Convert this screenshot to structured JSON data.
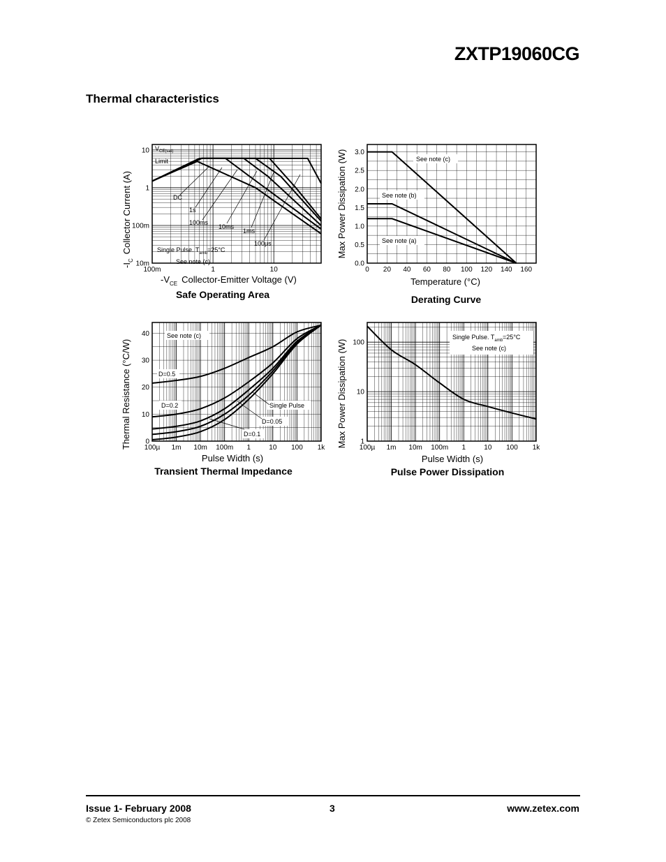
{
  "header": {
    "part_number": "ZXTP19060CG"
  },
  "section_title": "Thermal characteristics",
  "footer": {
    "issue": "Issue 1- February 2008",
    "page": "3",
    "website": "www.zetex.com",
    "copyright": "© Zetex Semiconductors plc 2008"
  },
  "chart_data": [
    {
      "id": "soa",
      "type": "line",
      "title": "Safe Operating Area",
      "xscale": "log",
      "yscale": "log",
      "xlim": [
        0.1,
        60
      ],
      "ylim": [
        0.01,
        14
      ],
      "xticks": [
        {
          "v": 0.1,
          "label": "100m"
        },
        {
          "v": 1,
          "label": "1"
        },
        {
          "v": 10,
          "label": "10"
        }
      ],
      "yticks": [
        {
          "v": 10,
          "label": "10"
        },
        {
          "v": 1,
          "label": "1"
        },
        {
          "v": 0.1,
          "label": "100m"
        },
        {
          "v": 0.01,
          "label": "10m"
        }
      ],
      "xlabel_prefix": "-V",
      "xlabel_sub": "CE",
      "xlabel_rest": "Collector-Emitter Voltage (V)",
      "ylabel_prefix": "-I",
      "ylabel_sub": "C",
      "ylabel_rest": "Collector Current (A)",
      "annotations": {
        "vce_sat_v": "V",
        "vce_sat_sub": "CE(sat)",
        "vce_sat_limit": "Limit",
        "single_pulse": "Single Pulse. T",
        "single_pulse_sub": "amb",
        "single_pulse_rest": "=25°C",
        "see_note": "See note (c)"
      },
      "series": [
        {
          "name": "DC",
          "x": [
            0.1,
            0.55,
            5,
            60
          ],
          "y": [
            1.5,
            5,
            1,
            0.06
          ]
        },
        {
          "name": "1s",
          "x": [
            0.1,
            0.6,
            1.6,
            4,
            60
          ],
          "y": [
            1.5,
            6,
            6,
            2,
            0.08
          ]
        },
        {
          "name": "100ms",
          "x": [
            0.1,
            0.65,
            3.2,
            8,
            60
          ],
          "y": [
            1.5,
            6,
            6,
            2,
            0.1
          ]
        },
        {
          "name": "10ms",
          "x": [
            0.1,
            0.65,
            5,
            13,
            60
          ],
          "y": [
            1.5,
            6,
            6,
            2,
            0.13
          ]
        },
        {
          "name": "1ms",
          "x": [
            0.1,
            0.65,
            8.5,
            23,
            60
          ],
          "y": [
            1.5,
            6,
            6,
            1,
            0.15
          ]
        },
        {
          "name": "100µs",
          "x": [
            0.1,
            0.65,
            36,
            60
          ],
          "y": [
            1.5,
            6,
            6,
            1.3
          ]
        }
      ]
    },
    {
      "id": "derating",
      "type": "line",
      "title": "Derating Curve",
      "xscale": "linear",
      "yscale": "linear",
      "xlim": [
        0,
        170
      ],
      "ylim": [
        0,
        3.2
      ],
      "xticks": [
        {
          "v": 0,
          "label": "0"
        },
        {
          "v": 20,
          "label": "20"
        },
        {
          "v": 40,
          "label": "40"
        },
        {
          "v": 60,
          "label": "60"
        },
        {
          "v": 80,
          "label": "80"
        },
        {
          "v": 100,
          "label": "100"
        },
        {
          "v": 120,
          "label": "120"
        },
        {
          "v": 140,
          "label": "140"
        },
        {
          "v": 160,
          "label": "160"
        }
      ],
      "yticks": [
        {
          "v": 0,
          "label": "0.0"
        },
        {
          "v": 0.5,
          "label": "0.5"
        },
        {
          "v": 1,
          "label": "1.0"
        },
        {
          "v": 1.5,
          "label": "1.5"
        },
        {
          "v": 2,
          "label": "2.0"
        },
        {
          "v": 2.5,
          "label": "2.5"
        },
        {
          "v": 3,
          "label": "3.0"
        }
      ],
      "xlabel": "Temperature (°C)",
      "ylabel": "Max Power Dissipation (W)",
      "series": [
        {
          "name": "See note (c)",
          "x": [
            0,
            25,
            150
          ],
          "y": [
            3.0,
            3.0,
            0
          ]
        },
        {
          "name": "See note (b)",
          "x": [
            0,
            25,
            150
          ],
          "y": [
            1.6,
            1.6,
            0
          ]
        },
        {
          "name": "See note (a)",
          "x": [
            0,
            25,
            150
          ],
          "y": [
            1.2,
            1.2,
            0
          ]
        }
      ]
    },
    {
      "id": "transient",
      "type": "line",
      "title": "Transient Thermal Impedance",
      "xscale": "log",
      "yscale": "linear",
      "xlim": [
        0.0001,
        1000
      ],
      "ylim": [
        0,
        44
      ],
      "xticks": [
        {
          "v": 0.0001,
          "label": "100µ"
        },
        {
          "v": 0.001,
          "label": "1m"
        },
        {
          "v": 0.01,
          "label": "10m"
        },
        {
          "v": 0.1,
          "label": "100m"
        },
        {
          "v": 1,
          "label": "1"
        },
        {
          "v": 10,
          "label": "10"
        },
        {
          "v": 100,
          "label": "100"
        },
        {
          "v": 1000,
          "label": "1k"
        }
      ],
      "yticks": [
        {
          "v": 0,
          "label": "0"
        },
        {
          "v": 10,
          "label": "10"
        },
        {
          "v": 20,
          "label": "20"
        },
        {
          "v": 30,
          "label": "30"
        },
        {
          "v": 40,
          "label": "40"
        }
      ],
      "xlabel": "Pulse Width (s)",
      "ylabel": "Thermal Resistance (°C/W)",
      "note": "See note (c)",
      "series": [
        {
          "name": "D=0.5",
          "x": [
            0.0001,
            0.001,
            0.01,
            0.1,
            1,
            10,
            100,
            1000
          ],
          "y": [
            21.5,
            22.5,
            24,
            27,
            31,
            35,
            40.5,
            43
          ]
        },
        {
          "name": "D=0.2",
          "x": [
            0.0001,
            0.001,
            0.01,
            0.1,
            1,
            10,
            100,
            1000
          ],
          "y": [
            9,
            10,
            12,
            16,
            22,
            29,
            38,
            43
          ]
        },
        {
          "name": "D=0.1",
          "x": [
            0.0001,
            0.001,
            0.01,
            0.1,
            1,
            10,
            100,
            1000
          ],
          "y": [
            4.5,
            5.5,
            7.5,
            12,
            19,
            27,
            37,
            43
          ]
        },
        {
          "name": "D=0.05",
          "x": [
            0.0001,
            0.001,
            0.01,
            0.1,
            1,
            10,
            100,
            1000
          ],
          "y": [
            2.5,
            3.5,
            5.5,
            10,
            17,
            26,
            36.5,
            43
          ]
        },
        {
          "name": "Single Pulse",
          "x": [
            0.0001,
            0.001,
            0.01,
            0.1,
            1,
            10,
            100,
            1000
          ],
          "y": [
            0.5,
            1.5,
            3.5,
            8,
            15.5,
            25,
            36,
            43
          ]
        }
      ]
    },
    {
      "id": "pulse_power",
      "type": "line",
      "title": "Pulse Power Dissipation",
      "xscale": "log",
      "yscale": "log",
      "xlim": [
        0.0001,
        1000
      ],
      "ylim": [
        1,
        250
      ],
      "xticks": [
        {
          "v": 0.0001,
          "label": "100µ"
        },
        {
          "v": 0.001,
          "label": "1m"
        },
        {
          "v": 0.01,
          "label": "10m"
        },
        {
          "v": 0.1,
          "label": "100m"
        },
        {
          "v": 1,
          "label": "1"
        },
        {
          "v": 10,
          "label": "10"
        },
        {
          "v": 100,
          "label": "100"
        },
        {
          "v": 1000,
          "label": "1k"
        }
      ],
      "yticks": [
        {
          "v": 1,
          "label": "1"
        },
        {
          "v": 10,
          "label": "10"
        },
        {
          "v": 100,
          "label": "100"
        }
      ],
      "xlabel": "Pulse Width (s)",
      "ylabel": "Max Power Dissipation (W)",
      "annotations": {
        "single_pulse": "Single Pulse. T",
        "single_pulse_sub": "amb",
        "single_pulse_rest": "=25°C",
        "see_note": "See note (c)"
      },
      "series": [
        {
          "name": "Single Pulse",
          "x": [
            0.0001,
            0.001,
            0.01,
            0.1,
            1,
            10,
            100,
            1000
          ],
          "y": [
            210,
            70,
            35,
            15,
            7,
            5,
            3.7,
            2.8
          ]
        }
      ]
    }
  ]
}
